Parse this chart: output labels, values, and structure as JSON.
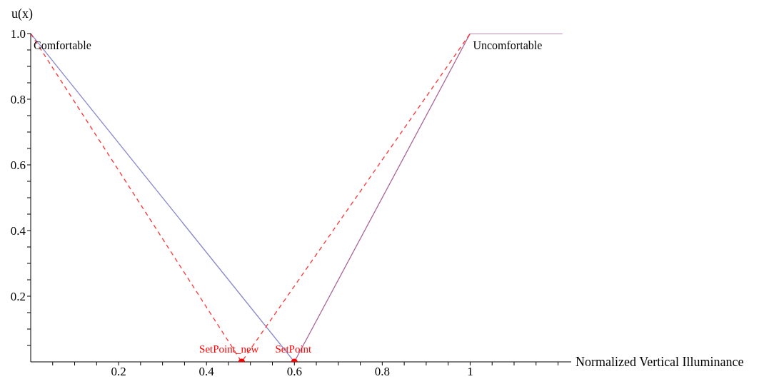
{
  "chart_data": {
    "type": "line",
    "xlabel": "Normalized Vertical Illuminance",
    "ylabel": "u(x)",
    "xlim": [
      0,
      1.23
    ],
    "ylim": [
      0,
      1
    ],
    "xticks": [
      {
        "value": 0.05,
        "label": null
      },
      {
        "value": 0.1,
        "label": null
      },
      {
        "value": 0.15,
        "label": null
      },
      0.2,
      {
        "value": 0.25,
        "label": null
      },
      {
        "value": 0.3,
        "label": null
      },
      {
        "value": 0.35,
        "label": null
      },
      0.4,
      {
        "value": 0.45,
        "label": null
      },
      {
        "value": 0.5,
        "label": null
      },
      {
        "value": 0.55,
        "label": null
      },
      0.6,
      {
        "value": 0.65,
        "label": null
      },
      {
        "value": 0.7,
        "label": null
      },
      {
        "value": 0.75,
        "label": null
      },
      0.8,
      {
        "value": 0.85,
        "label": null
      },
      {
        "value": 0.9,
        "label": null
      },
      {
        "value": 0.95,
        "label": null
      },
      1,
      {
        "value": 1.05,
        "label": null
      },
      {
        "value": 1.1,
        "label": null
      },
      {
        "value": 1.15,
        "label": null
      },
      {
        "value": 1.2,
        "label": null
      }
    ],
    "yticks": [
      {
        "value": 0.05,
        "label": null
      },
      {
        "value": 0.1,
        "label": null
      },
      {
        "value": 0.15,
        "label": null
      },
      0.2,
      {
        "value": 0.25,
        "label": null
      },
      {
        "value": 0.3,
        "label": null
      },
      {
        "value": 0.35,
        "label": null
      },
      0.4,
      {
        "value": 0.45,
        "label": null
      },
      {
        "value": 0.5,
        "label": null
      },
      {
        "value": 0.55,
        "label": null
      },
      0.6,
      {
        "value": 0.65,
        "label": null
      },
      {
        "value": 0.7,
        "label": null
      },
      {
        "value": 0.75,
        "label": null
      },
      0.8,
      {
        "value": 0.85,
        "label": null
      },
      {
        "value": 0.9,
        "label": null
      },
      {
        "value": 0.95,
        "label": null
      },
      {
        "value": 1,
        "label": "1.0"
      }
    ],
    "grid": false,
    "marker": "none",
    "series": [
      {
        "name": "Comfortable",
        "color": "#8888cc",
        "x": [
          0,
          0.6
        ],
        "values": [
          1,
          0
        ],
        "line_style": "solid"
      },
      {
        "name": "Uncomfortable",
        "color": "#aa6699",
        "x": [
          0.6,
          1,
          1.21
        ],
        "values": [
          0,
          1,
          1
        ],
        "line_style": "solid"
      },
      {
        "color": "#ff3333",
        "x": [
          0,
          0.48,
          1
        ],
        "values": [
          1,
          0,
          1
        ],
        "line_style": "dashed"
      },
      {
        "name": "SetPoint_new",
        "type": "scatter",
        "color": "#ff0000",
        "x": [
          0.48
        ],
        "values": [
          0
        ],
        "marker": "circle"
      },
      {
        "name": "SetPoint",
        "type": "scatter",
        "color": "#ff0000",
        "x": [
          0.6
        ],
        "values": [
          0
        ],
        "marker": "circle"
      }
    ]
  }
}
